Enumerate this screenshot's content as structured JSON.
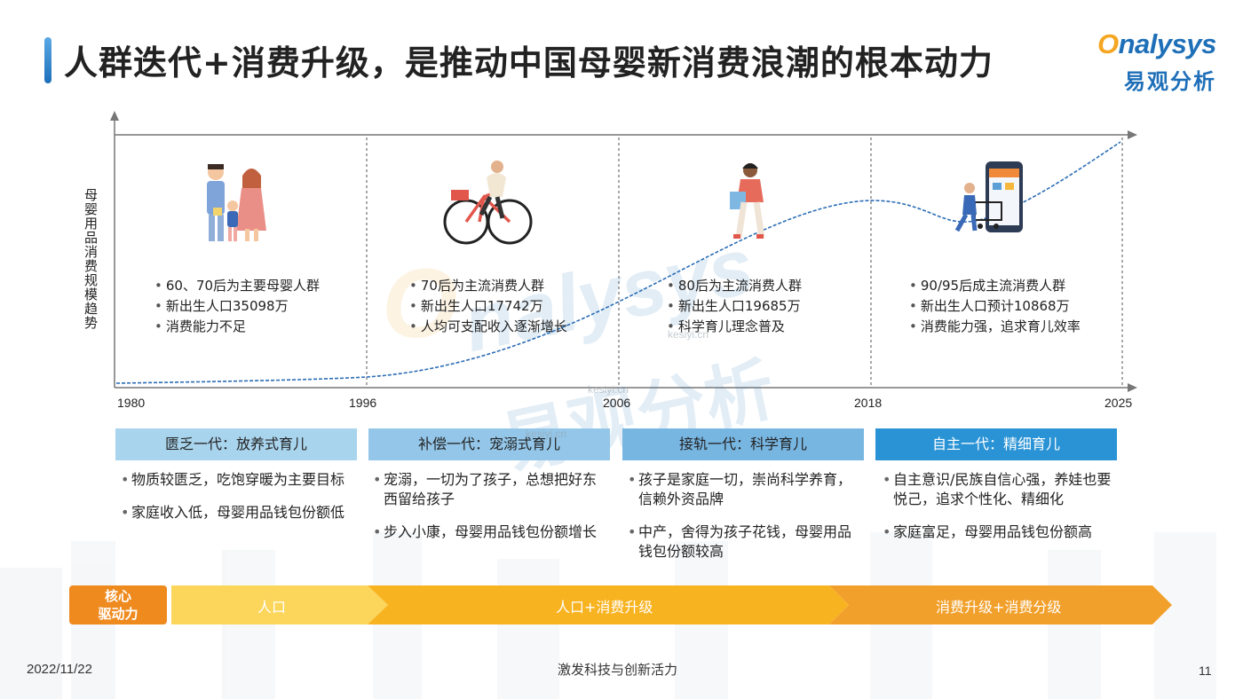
{
  "header": {
    "title": "人群迭代+消费升级，是推动中国母婴新消费浪潮的根本动力",
    "logo_en": "nalysys",
    "logo_cn": "易观分析"
  },
  "chart": {
    "ylabel": "母婴用品消费规模趋势",
    "years": [
      "1980",
      "1996",
      "2006",
      "2018",
      "2025"
    ]
  },
  "chart_data": {
    "type": "line",
    "title": "",
    "ylabel": "母婴用品消费规模趋势",
    "xlabel": "",
    "x": [
      "1980",
      "1996",
      "2006",
      "2018",
      "2025"
    ],
    "series": [
      {
        "values": [
          0.02,
          0.04,
          0.25,
          0.75,
          1.0
        ]
      }
    ],
    "grid": false
  },
  "eras": [
    {
      "bullets": [
        "60、70后为主要母婴人群",
        "新出生人口35098万",
        "消费能力不足"
      ],
      "header": "匮乏一代：放养式育儿",
      "header_color": "#a9d4ee",
      "points": [
        "物质较匮乏，吃饱穿暖为主要目标",
        "家庭收入低，母婴用品钱包份额低"
      ]
    },
    {
      "bullets": [
        "70后为主流消费人群",
        "新出生人口17742万",
        "人均可支配收入逐渐增长"
      ],
      "header": "补偿一代：宠溺式育儿",
      "header_color": "#93c6e8",
      "points": [
        "宠溺，一切为了孩子，总想把好东西留给孩子",
        "步入小康，母婴用品钱包份额增长"
      ]
    },
    {
      "bullets": [
        "80后为主流消费人群",
        "新出生人口19685万",
        "科学育儿理念普及"
      ],
      "header": "接轨一代：科学育儿",
      "header_color": "#78b6e2",
      "points": [
        "孩子是家庭一切，崇尚科学养育，信赖外资品牌",
        "中产，舍得为孩子花钱，母婴用品钱包份额较高"
      ]
    },
    {
      "bullets": [
        "90/95后成主流消费人群",
        "新出生人口预计10868万",
        "消费能力强，追求育儿效率"
      ],
      "header": "自主一代：精细育儿",
      "header_color": "#2a93d5",
      "header_text_color": "#ffffff",
      "points": [
        "自主意识/民族自信心强，养娃也要悦己，追求个性化、精细化",
        "家庭富足，母婴用品钱包份额高"
      ]
    }
  ],
  "drivers": {
    "core_label_1": "核心",
    "core_label_2": "驱动力",
    "arrows": [
      "人口",
      "人口+消费升级",
      "消费升级+消费分级"
    ],
    "colors": [
      "#fbd65b",
      "#f8b321",
      "#f2a02c"
    ]
  },
  "watermark": [
    "kesiyi.cn",
    "kesiyi.cn",
    "kesiyi.cn"
  ],
  "footer": {
    "date": "2022/11/22",
    "center": "激发科技与创新活力",
    "page": "11"
  }
}
